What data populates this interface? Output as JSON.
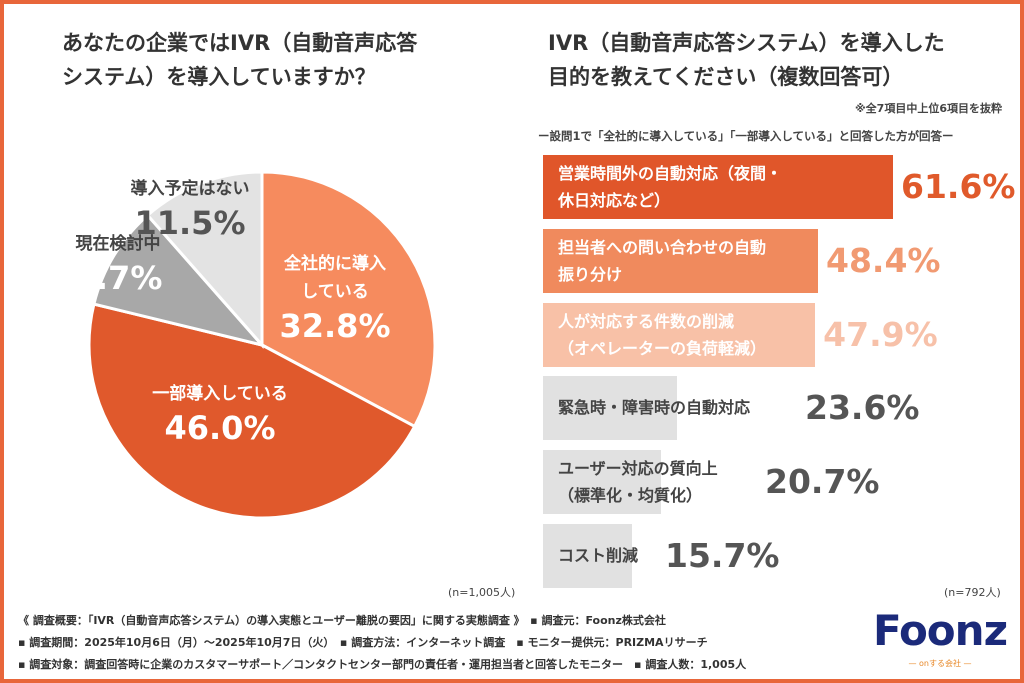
{
  "pie_section": {
    "title_line1": "あなたの企業ではIVR（自動音声応答",
    "title_line2": "システム）を導入していますか？",
    "n": "(n=1,005人)"
  },
  "bar_section": {
    "title_line1": "IVR（自動音声応答システム）を導入した",
    "title_line2": "目的を教えてください（複数回答可）",
    "note": "※全7項目中上位6項目を抜粋",
    "subnote": "ー設問1で「全社的に導入している」「一部導入している」と回答した方が回答ー",
    "n": "(n=792人)"
  },
  "chart_data": [
    {
      "type": "pie",
      "slices": [
        {
          "label_line1": "全社的に導入",
          "label_line2": "している",
          "value": 32.8,
          "display": "32.8%",
          "color": "#f68b5e"
        },
        {
          "label_line1": "一部導入している",
          "label_line2": "",
          "value": 46.0,
          "display": "46.0%",
          "color": "#e0592c"
        },
        {
          "label_line1": "現在検討中",
          "label_line2": "",
          "value": 9.7,
          "display": "9.7%",
          "color": "#a8a8a8"
        },
        {
          "label_line1": "導入予定はない",
          "label_line2": "",
          "value": 11.5,
          "display": "11.5%",
          "color": "#e3e3e3"
        }
      ]
    },
    {
      "type": "bar",
      "orientation": "horizontal",
      "bars": [
        {
          "label_line1": "営業時間外の自動対応（夜間・",
          "label_line2": "休日対応など）",
          "value": 61.6,
          "display": "61.6%",
          "color": "#e0562a",
          "value_color": "#e05a2b",
          "text_color": "#ffffff"
        },
        {
          "label_line1": "担当者への問い合わせの自動",
          "label_line2": "振り分け",
          "value": 48.4,
          "display": "48.4%",
          "color": "#f08a5d",
          "value_color": "#f19a72",
          "text_color": "#ffffff"
        },
        {
          "label_line1": "人が対応する件数の削減",
          "label_line2": "（オペレーターの負荷軽減）",
          "value": 47.9,
          "display": "47.9%",
          "color": "#f8c1a7",
          "value_color": "#f7c1a9",
          "text_color": "#ffffff"
        },
        {
          "label_line1": "緊急時・障害時の自動対応",
          "label_line2": "",
          "value": 23.6,
          "display": "23.6%",
          "color": "#e1e1e1",
          "value_color": "#555555",
          "text_color": "#444444"
        },
        {
          "label_line1": "ユーザー対応の質向上",
          "label_line2": "（標準化・均質化）",
          "value": 20.7,
          "display": "20.7%",
          "color": "#e1e1e1",
          "value_color": "#555555",
          "text_color": "#444444"
        },
        {
          "label_line1": "コスト削減",
          "label_line2": "",
          "value": 15.7,
          "display": "15.7%",
          "color": "#e1e1e1",
          "value_color": "#555555",
          "text_color": "#444444"
        }
      ]
    }
  ],
  "footer": {
    "line1": "《 調査概要：「IVR（自動音声応答システム）の導入実態とユーザー離脱の要因」に関する実態調査 》　▪ 調査元：Foonz株式会社",
    "line2": "▪ 調査期間：2025年10月6日（月）～2025年10月7日（火）　▪ 調査方法：インターネット調査　▪ モニター提供元：PRIZMAリサーチ",
    "line3": "▪ 調査対象：調査回答時に企業のカスタマーサポート／コンタクトセンター部門の責任者・運用担当者と回答したモニター　▪ 調査人数：1,005人"
  },
  "logo": {
    "text": "Foonz",
    "sub": "— onする会社 —",
    "color": "#1b2a7a"
  },
  "accent": "#e8663a"
}
